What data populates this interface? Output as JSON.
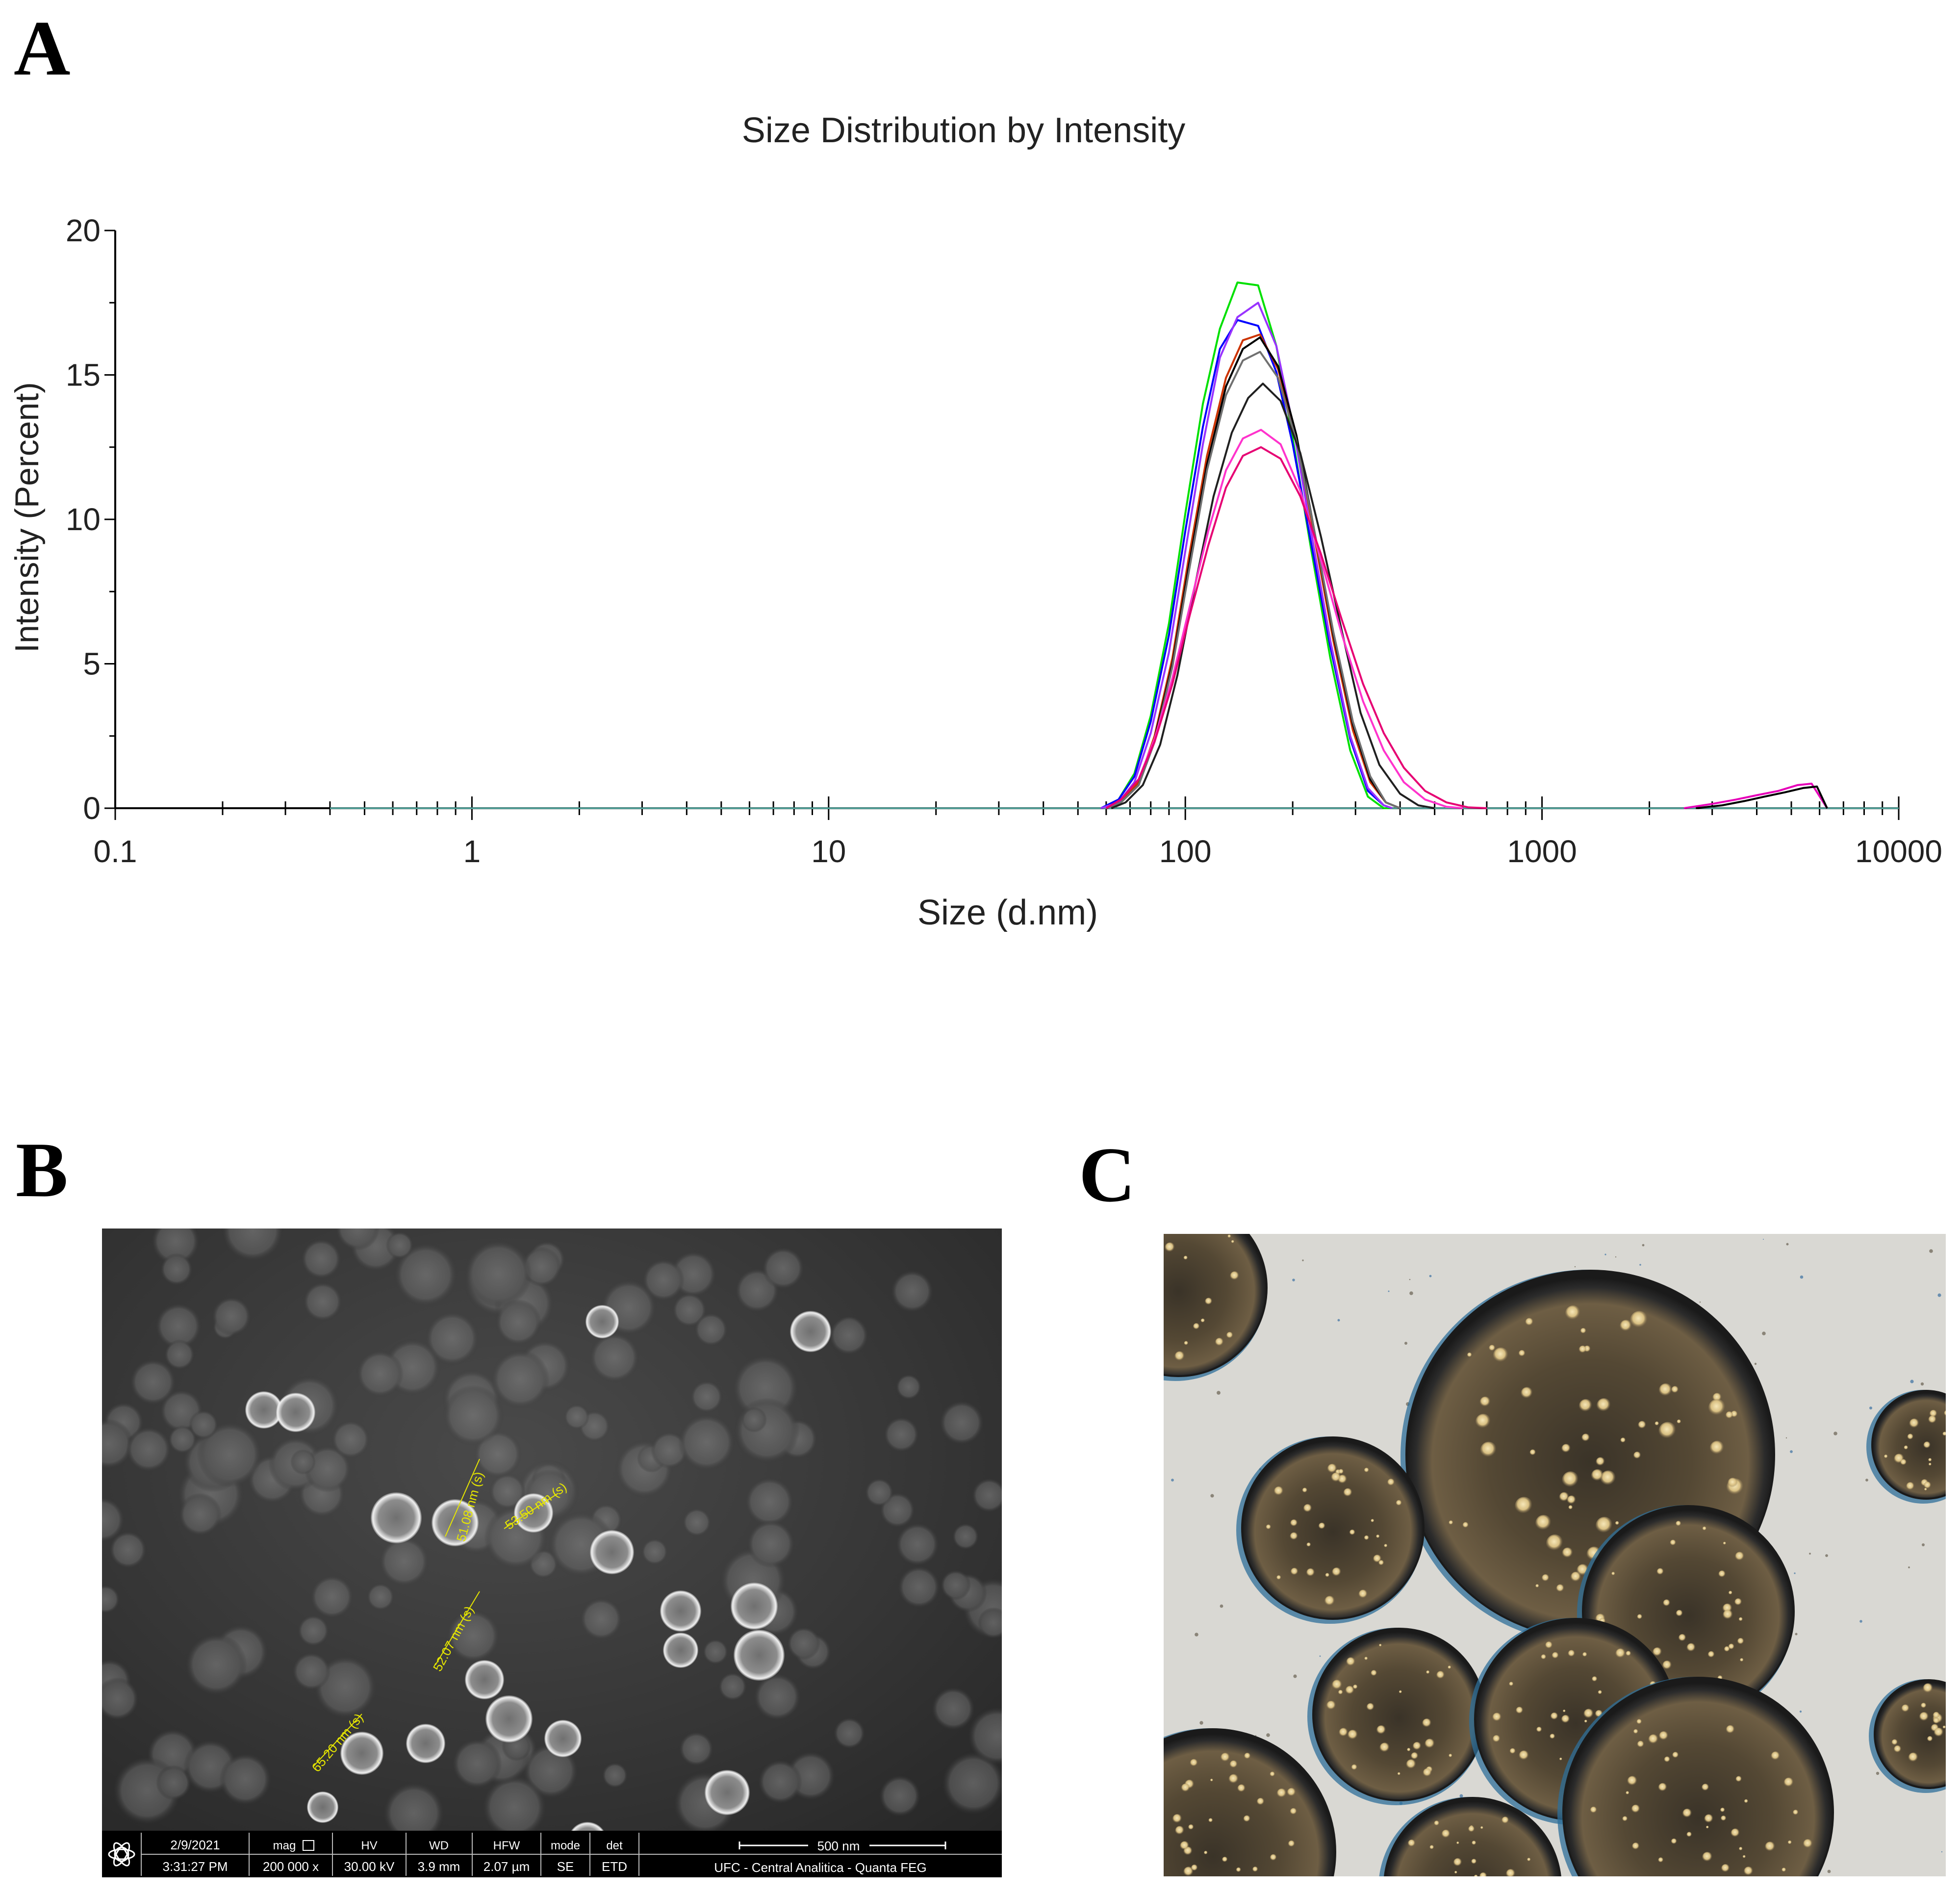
{
  "panels": {
    "a": "A",
    "b": "B",
    "c": "C"
  },
  "chart_data": {
    "type": "line",
    "title": "Size Distribution by Intensity",
    "xlabel": "Size (d.nm)",
    "ylabel": "Intensity (Percent)",
    "x_scale": "log",
    "xlim": [
      0.1,
      10000
    ],
    "ylim": [
      0,
      20
    ],
    "x_ticks": [
      0.1,
      1,
      10,
      100,
      1000,
      10000
    ],
    "x_tick_labels": [
      "0.1",
      "1",
      "10",
      "100",
      "1000",
      "10000"
    ],
    "y_ticks": [
      0,
      5,
      10,
      15,
      20
    ],
    "y_tick_labels": [
      "0",
      "5",
      "10",
      "15",
      "20"
    ],
    "grid": false,
    "legend": "none",
    "baseline": {
      "x": [
        0.4,
        10000
      ],
      "y": [
        0,
        0
      ],
      "color": "#5fb8b0"
    },
    "series": [
      {
        "color": "#00e000",
        "x": [
          58,
          65,
          72,
          80,
          90,
          100,
          112,
          125,
          140,
          160,
          180,
          200,
          225,
          255,
          290,
          325,
          360,
          380
        ],
        "y": [
          0,
          0.3,
          1.2,
          3.2,
          6.4,
          10.2,
          14.0,
          16.6,
          18.2,
          18.1,
          16.0,
          12.8,
          9.0,
          5.2,
          2.0,
          0.4,
          0,
          0
        ]
      },
      {
        "color": "#0000ff",
        "x": [
          58,
          65,
          72,
          80,
          90,
          100,
          112,
          125,
          140,
          160,
          180,
          200,
          225,
          255,
          290,
          325,
          360,
          380
        ],
        "y": [
          0,
          0.3,
          1.1,
          3.0,
          6.0,
          9.6,
          13.2,
          15.9,
          16.9,
          16.7,
          15.1,
          12.6,
          9.2,
          5.6,
          2.4,
          0.6,
          0.1,
          0
        ]
      },
      {
        "color": "#9933ff",
        "x": [
          58,
          65,
          72,
          80,
          90,
          100,
          112,
          125,
          140,
          160,
          180,
          200,
          225,
          255,
          290,
          325,
          360,
          380
        ],
        "y": [
          0,
          0.2,
          0.9,
          2.6,
          5.4,
          8.9,
          12.6,
          15.6,
          17.0,
          17.5,
          16.0,
          13.3,
          9.6,
          5.8,
          2.5,
          0.7,
          0.1,
          0
        ]
      },
      {
        "color": "#cc3300",
        "x": [
          60,
          66,
          74,
          82,
          92,
          102,
          115,
          130,
          145,
          162,
          182,
          205,
          230,
          260,
          295,
          330,
          365,
          400
        ],
        "y": [
          0,
          0.2,
          0.9,
          2.5,
          5.2,
          8.6,
          12.2,
          14.9,
          16.2,
          16.4,
          15.2,
          12.8,
          9.4,
          5.8,
          2.7,
          0.9,
          0.2,
          0
        ]
      },
      {
        "color": "#000000",
        "x": [
          60,
          66,
          74,
          82,
          92,
          102,
          115,
          130,
          145,
          162,
          182,
          205,
          230,
          260,
          295,
          330,
          365,
          400
        ],
        "y": [
          0,
          0.2,
          0.8,
          2.4,
          5.0,
          8.3,
          11.9,
          14.6,
          15.9,
          16.3,
          15.3,
          12.9,
          9.6,
          6.0,
          2.9,
          1.0,
          0.2,
          0
        ]
      },
      {
        "color": "#707070",
        "x": [
          60,
          66,
          74,
          82,
          92,
          102,
          115,
          130,
          145,
          162,
          182,
          205,
          230,
          260,
          295,
          330,
          365,
          400
        ],
        "y": [
          0,
          0.2,
          0.8,
          2.3,
          4.9,
          8.1,
          11.7,
          14.3,
          15.5,
          15.8,
          14.9,
          12.7,
          9.6,
          6.1,
          3.0,
          1.1,
          0.2,
          0
        ]
      },
      {
        "color": "#202020",
        "x": [
          62,
          68,
          76,
          85,
          95,
          106,
          120,
          135,
          150,
          165,
          185,
          210,
          240,
          275,
          310,
          350,
          400,
          450,
          500
        ],
        "y": [
          0,
          0.2,
          0.8,
          2.2,
          4.6,
          7.6,
          10.8,
          13.0,
          14.2,
          14.7,
          14.1,
          12.3,
          9.4,
          6.1,
          3.3,
          1.5,
          0.5,
          0.1,
          0
        ]
      },
      {
        "color": "#ff33cc",
        "x": [
          60,
          66,
          74,
          82,
          92,
          103,
          116,
          130,
          145,
          163,
          185,
          210,
          240,
          275,
          315,
          360,
          410,
          470,
          540,
          600
        ],
        "y": [
          0,
          0.3,
          1.0,
          2.4,
          4.5,
          7.0,
          9.6,
          11.7,
          12.8,
          13.1,
          12.6,
          11.0,
          8.6,
          6.0,
          3.7,
          2.0,
          0.9,
          0.3,
          0.05,
          0
        ]
      },
      {
        "color": "#e60073",
        "x": [
          60,
          66,
          74,
          82,
          92,
          103,
          116,
          130,
          145,
          163,
          185,
          210,
          240,
          275,
          315,
          360,
          410,
          470,
          540,
          620,
          700
        ],
        "y": [
          0,
          0.3,
          1.0,
          2.3,
          4.3,
          6.7,
          9.1,
          11.1,
          12.2,
          12.5,
          12.1,
          10.8,
          8.8,
          6.5,
          4.3,
          2.6,
          1.4,
          0.6,
          0.2,
          0.03,
          0
        ]
      },
      {
        "color": "#e600b8",
        "x": [
          2500,
          3000,
          3500,
          4000,
          4600,
          5200,
          5700,
          6300
        ],
        "y": [
          0,
          0.15,
          0.3,
          0.45,
          0.6,
          0.8,
          0.85,
          0
        ]
      },
      {
        "color": "#000000",
        "x": [
          2700,
          3200,
          3700,
          4200,
          4800,
          5400,
          5900,
          6300
        ],
        "y": [
          0,
          0.1,
          0.25,
          0.4,
          0.55,
          0.7,
          0.75,
          0
        ]
      }
    ]
  },
  "sem": {
    "measurements": [
      "51.08 nm (s)",
      "53.50 nm (s)",
      "52.07 nm (s)",
      "65.20 nm (s)"
    ],
    "info_bar": {
      "date": "2/9/2021",
      "time": "3:31:27 PM",
      "mag_label": "mag",
      "mag": "200 000 x",
      "hv_label": "HV",
      "hv": "30.00 kV",
      "wd_label": "WD",
      "wd": "3.9 mm",
      "hfw_label": "HFW",
      "hfw": "2.07 µm",
      "mode_label": "mode",
      "mode": "SE",
      "det_label": "det",
      "det": "ETD",
      "scale": "500 nm",
      "lab": "UFC - Central Analitica - Quanta FEG"
    }
  }
}
